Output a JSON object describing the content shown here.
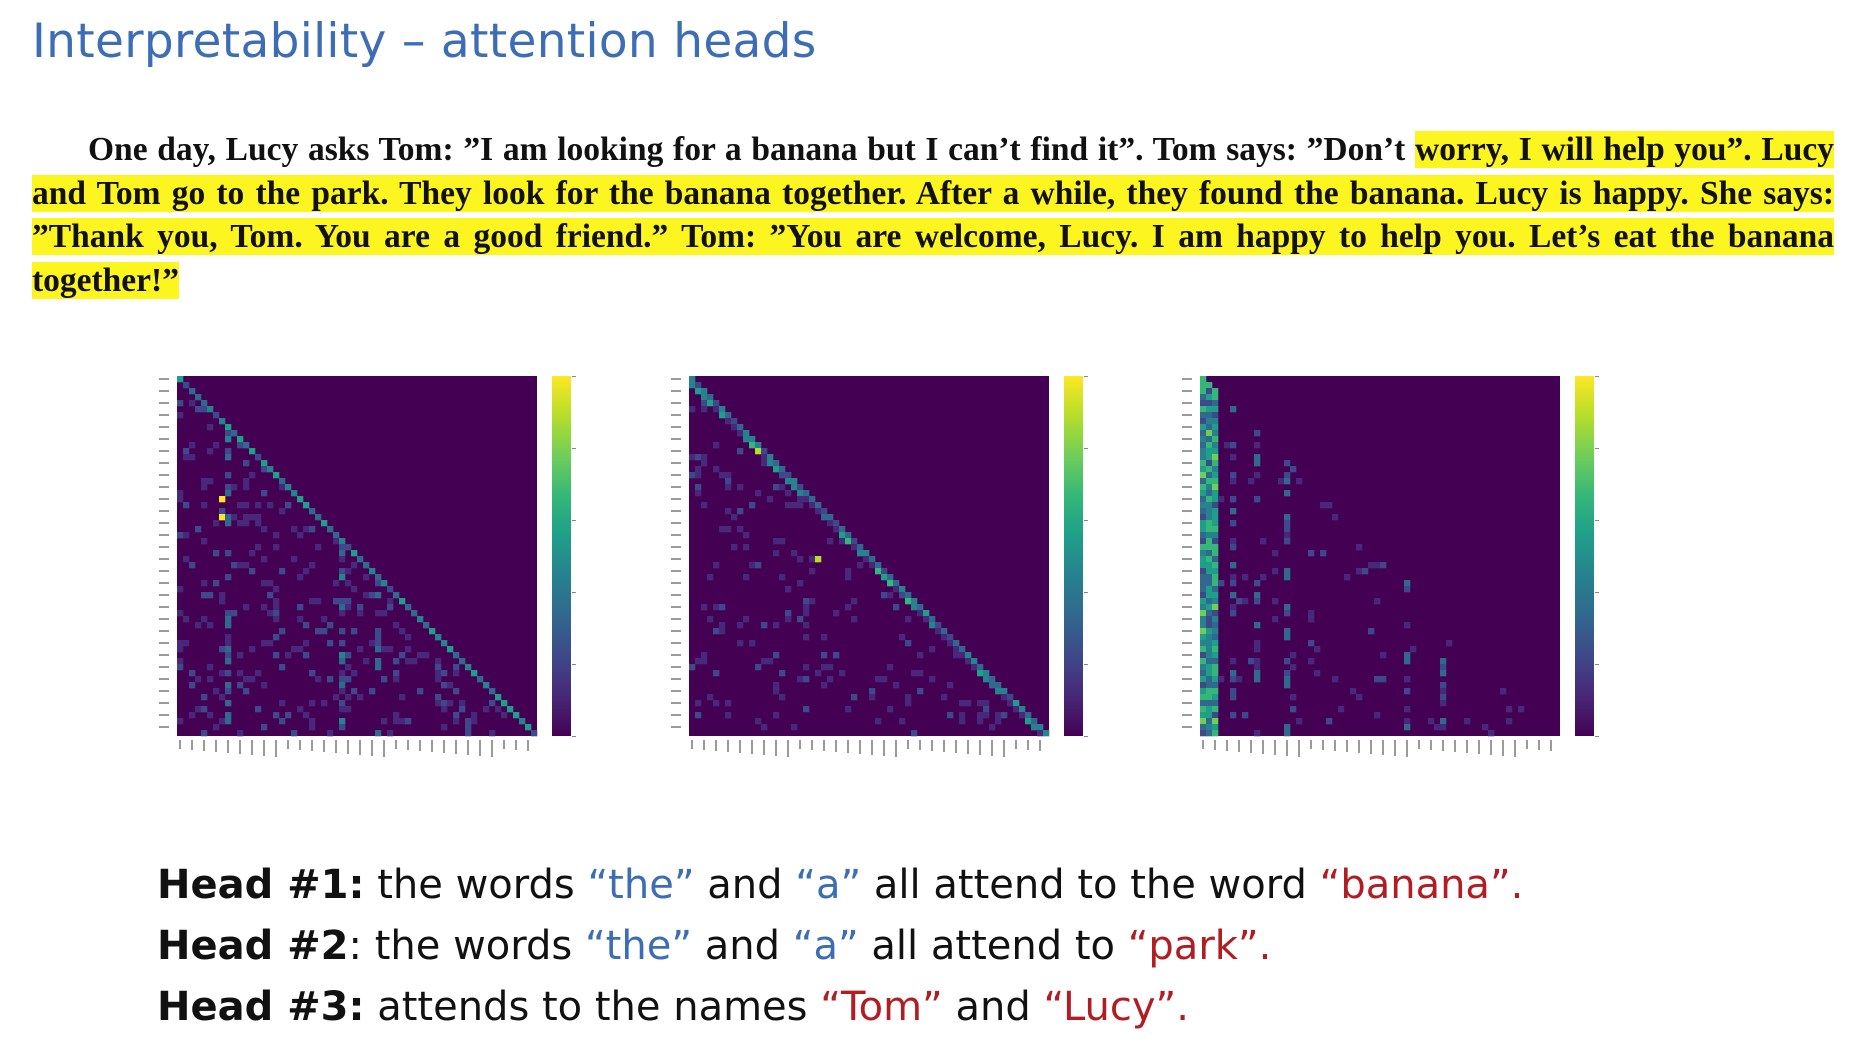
{
  "title": "Interpretability – attention heads",
  "story": {
    "lead": "One day, Lucy asks Tom: ”I am looking for a banana but I can’t find it”. Tom says: ”Don’t ",
    "highlighted": "worry, I will help you”. Lucy and Tom go to the park. They look for the banana together. After a while, they found the banana. Lucy is happy. She says: ”Thank you, Tom. You are a good friend.” Tom: ”You are welcome, Lucy. I am happy to help you. Let’s eat the banana together!”"
  },
  "heatmaps": [
    {
      "name": "Head #1",
      "pattern": "head1"
    },
    {
      "name": "Head #2",
      "pattern": "head2"
    },
    {
      "name": "Head #3",
      "pattern": "head3"
    }
  ],
  "colors": {
    "title": "#3d6db5",
    "highlight": "#fdf51f",
    "quote_blue": "#3d6db5",
    "quote_red": "#b11d22",
    "heatmap_bg": "#440154"
  },
  "captions": [
    {
      "head": "Head #1:",
      "parts": [
        {
          "text": " the words ",
          "color": "default"
        },
        {
          "text": "“the”",
          "color": "blue"
        },
        {
          "text": " and ",
          "color": "default"
        },
        {
          "text": "“a”",
          "color": "blue"
        },
        {
          "text": " all attend to the word ",
          "color": "default"
        },
        {
          "text": "“banana”.",
          "color": "red"
        }
      ]
    },
    {
      "head": "Head #2",
      "parts": [
        {
          "text": ": the words ",
          "color": "default"
        },
        {
          "text": "“the”",
          "color": "blue"
        },
        {
          "text": " and ",
          "color": "default"
        },
        {
          "text": "“a”",
          "color": "blue"
        },
        {
          "text": " all attend to ",
          "color": "default"
        },
        {
          "text": "“park”.",
          "color": "red"
        }
      ]
    },
    {
      "head": "Head #3:",
      "parts": [
        {
          "text": " attends to the names ",
          "color": "default"
        },
        {
          "text": "“Tom”",
          "color": "red"
        },
        {
          "text": " and ",
          "color": "default"
        },
        {
          "text": "“Lucy”.",
          "color": "red"
        }
      ]
    }
  ]
}
